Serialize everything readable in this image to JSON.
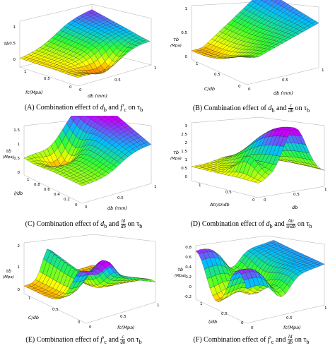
{
  "figures": [
    {
      "id": "A",
      "caption": {
        "prefix": "(A)  Combination effect of ",
        "v1": "d",
        "s1": "b",
        "and": " and ",
        "v2": "f′",
        "s2": "c",
        "on": " on τ",
        "s3": "b"
      },
      "zlabel": "τb",
      "zlabel_units": "",
      "xlabel": "fc(Mpa)",
      "ylabel": "db (mm)",
      "zticks": [
        "1",
        "0.5",
        "0"
      ],
      "xticks": [
        "1",
        "0.5",
        "0"
      ],
      "yticks": [
        "0",
        "0.5",
        "1"
      ]
    },
    {
      "id": "B",
      "caption": {
        "prefix": "(B)  Combination effect of ",
        "v1": "d",
        "s1": "b",
        "and": " and ",
        "frac_num": "c",
        "frac_den": "db",
        "on": " on τ",
        "s3": "b"
      },
      "zlabel": "τb",
      "zlabel_units": "(Mpa)",
      "xlabel": "C/db",
      "ylabel": "db (mm)",
      "zticks": [
        "1",
        "0.5",
        "0"
      ],
      "xticks": [
        "1",
        "0.5",
        "0"
      ],
      "yticks": [
        "0",
        "0.5",
        "1"
      ]
    },
    {
      "id": "C",
      "caption": {
        "prefix": "(C)  Combination effect of ",
        "v1": "d",
        "s1": "b",
        "and": " and ",
        "frac_num": "ld",
        "frac_den": "db",
        "on": " on τ",
        "s3": "b"
      },
      "zlabel": "τb",
      "zlabel_units": "(Mpa)",
      "xlabel": "l/db",
      "ylabel": "db (mm)",
      "zticks": [
        "1.5",
        "1",
        "0.5",
        "0"
      ],
      "xticks": [
        "1",
        "0.8",
        "0.6",
        "0.4",
        "0.2",
        "0"
      ],
      "yticks": [
        "0",
        "0.5",
        "1"
      ]
    },
    {
      "id": "D",
      "caption": {
        "prefix": "(D)  Combination effect of ",
        "v1": "d",
        "s1": "b",
        "and": " and ",
        "frac_num": "Atr",
        "frac_den": "sndb",
        "on": " on τ",
        "s3": "b"
      },
      "zlabel": "τb",
      "zlabel_units": "(Mpa)",
      "xlabel": "Atr/sndb",
      "ylabel": "db",
      "zticks": [
        "3",
        "2.5",
        "2",
        "1.5",
        "1",
        "0.5",
        "0"
      ],
      "xticks": [
        "1",
        "0.5",
        "0"
      ],
      "yticks": [
        "0",
        "0.5",
        "1"
      ]
    },
    {
      "id": "E",
      "caption": {
        "prefix": "(E)  Combination effect of ",
        "v1": "f′",
        "s1": "c",
        "and": " and ",
        "frac_num": "c",
        "frac_den": "db",
        "on": " on τ",
        "s3": "b"
      },
      "zlabel": "τb",
      "zlabel_units": "(Mpa)",
      "xlabel": "C/db",
      "ylabel": "fc(Mpa)",
      "zticks": [
        "2",
        "1",
        "0"
      ],
      "xticks": [
        "1",
        "0.5",
        "0"
      ],
      "yticks": [
        "0",
        "0.5",
        "1"
      ]
    },
    {
      "id": "F",
      "caption": {
        "prefix": "(F)  Combination effect of ",
        "v1": "f′",
        "s1": "c",
        "and": " and ",
        "frac_num": "ld",
        "frac_den": "db",
        "on": " on τ",
        "s3": "b"
      },
      "zlabel": "τb",
      "zlabel_units": "(Mpa)",
      "xlabel": "l/db",
      "ylabel": "fc(Mpa)",
      "zticks": [
        "0.8",
        "0.6",
        "0.4",
        "0.2",
        "0",
        "-0.2"
      ],
      "xticks": [
        "1",
        "0.5",
        "0"
      ],
      "yticks": [
        "0",
        "0.5",
        "1"
      ]
    }
  ],
  "colors": {
    "high": "#c800ff",
    "mid_high": "#00c0ff",
    "mid": "#30ff30",
    "mid_low": "#ffff00",
    "low": "#ff4000"
  }
}
